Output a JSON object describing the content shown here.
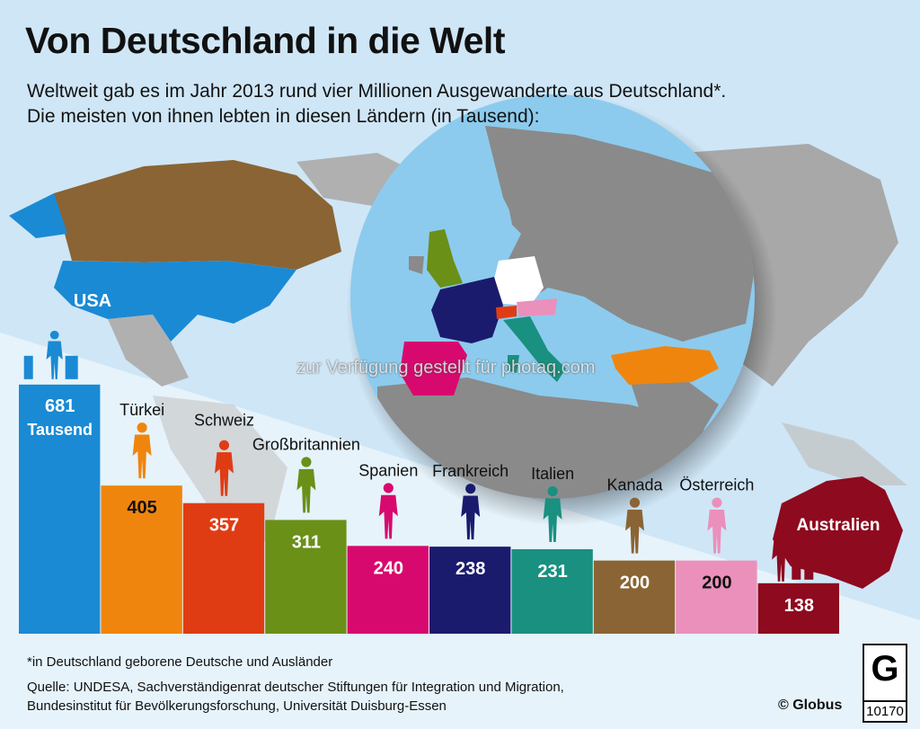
{
  "header": {
    "title": "Von Deutschland in die Welt",
    "subtitle_line1": "Weltweit gab es im Jahr 2013 rund vier Millionen Ausgewanderte aus Deutschland*.",
    "subtitle_line2": "Die meisten von ihnen lebten in diesen Ländern (in Tausend):"
  },
  "chart_data": {
    "type": "bar",
    "title": "Von Deutschland in die Welt",
    "unit": "Tausend",
    "categories": [
      "USA",
      "Türkei",
      "Schweiz",
      "Großbritannien",
      "Spanien",
      "Frankreich",
      "Italien",
      "Kanada",
      "Österreich",
      "Australien"
    ],
    "values": [
      681,
      405,
      357,
      311,
      240,
      238,
      231,
      200,
      200,
      138
    ],
    "value_labels": [
      "681",
      "405",
      "357",
      "311",
      "240",
      "238",
      "231",
      "200",
      "200",
      "138"
    ],
    "first_bar_unit_label": "Tausend",
    "colors": [
      "#1a8ad4",
      "#f0850e",
      "#e03c14",
      "#6a9018",
      "#d8096e",
      "#1b1b6e",
      "#1a9080",
      "#8a6434",
      "#ea90bb",
      "#8e0a1e"
    ],
    "value_text_colors": [
      "#ffffff",
      "#111111",
      "#ffffff",
      "#ffffff",
      "#ffffff",
      "#ffffff",
      "#ffffff",
      "#ffffff",
      "#111111",
      "#ffffff"
    ],
    "ylim": [
      0,
      700
    ]
  },
  "watermark": "zur Verfügung gestellt für photaq.com",
  "footer": {
    "note": "*in Deutschland geborene Deutsche und Ausländer",
    "source_line1": "Quelle: UNDESA, Sachverständigenrat deutscher Stiftungen für Integration und Migration,",
    "source_line2": "Bundesinstitut für Bevölkerungsforschung, Universität Duisburg-Essen",
    "credit": "© Globus",
    "logo_letter": "G",
    "graphic_number": "10170"
  }
}
